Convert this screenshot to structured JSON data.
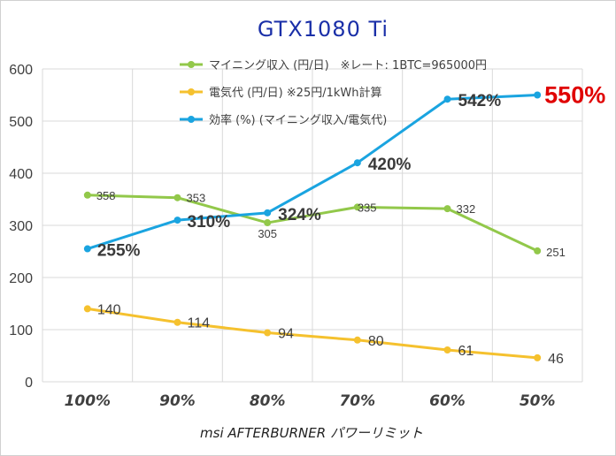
{
  "chart_data": {
    "type": "line",
    "title": "GTX1080 Ti",
    "xlabel": "msi AFTERBURNER パワーリミット",
    "ylabel": "",
    "ylim": [
      0,
      600
    ],
    "yticks": [
      0,
      100,
      200,
      300,
      400,
      500,
      600
    ],
    "categories": [
      "100%",
      "90%",
      "80%",
      "70%",
      "60%",
      "50%"
    ],
    "grid": true,
    "legend_position": "top-right",
    "series": [
      {
        "name": "マイニング収入 (円/日)　※レート: 1BTC=965000円",
        "color": "#92c84a",
        "values": [
          358,
          353,
          305,
          335,
          332,
          251
        ],
        "labels": [
          "358",
          "353",
          "305",
          "335",
          "332",
          "251"
        ]
      },
      {
        "name": "電気代 (円/日) ※25円/1kWh計算",
        "color": "#f5c12e",
        "values": [
          140,
          114,
          94,
          80,
          61,
          46
        ],
        "labels": [
          "140",
          "114",
          "94",
          "80",
          "61",
          "46"
        ]
      },
      {
        "name": "効率 (%) (マイニング収入/電気代)",
        "color": "#1aa4e0",
        "values": [
          255,
          310,
          324,
          420,
          542,
          550
        ],
        "labels": [
          "255%",
          "310%",
          "324%",
          "420%",
          "542%",
          "550%"
        ],
        "highlight_color": "#e00000"
      }
    ]
  }
}
